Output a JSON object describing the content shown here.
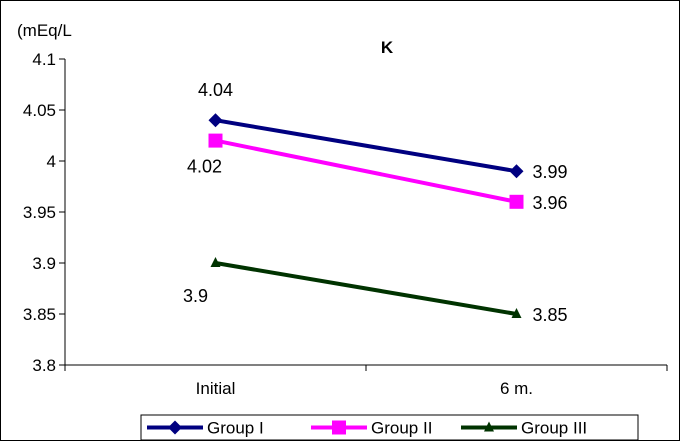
{
  "chart_data": {
    "type": "line",
    "title": "K",
    "ylabel": "(mEq/L",
    "xlabel": "",
    "categories": [
      "Initial",
      "6 m."
    ],
    "ylim": [
      3.8,
      4.1
    ],
    "yticks": [
      "3.8",
      "3.85",
      "3.9",
      "3.95",
      "4",
      "4.05",
      "4.1"
    ],
    "grid": false,
    "legend_position": "bottom",
    "series": [
      {
        "name": "Group I",
        "values": [
          4.04,
          3.99
        ],
        "labels": [
          "4.04",
          "3.99"
        ],
        "color": "#000080",
        "marker": "diamond"
      },
      {
        "name": "Group II",
        "values": [
          4.02,
          3.96
        ],
        "labels": [
          "4.02",
          "3.96"
        ],
        "color": "#FF00FF",
        "marker": "square"
      },
      {
        "name": "Group III",
        "values": [
          3.9,
          3.85
        ],
        "labels": [
          "3.9",
          "3.85"
        ],
        "color": "#003300",
        "marker": "triangle"
      }
    ]
  }
}
